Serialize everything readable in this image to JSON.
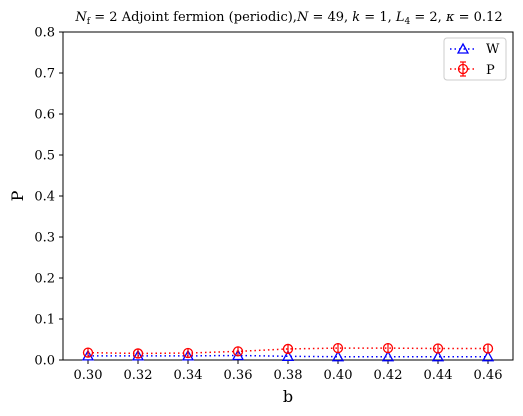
{
  "chart_data": {
    "type": "line",
    "title": "N_f = 2 Adjoint fermion (periodic), N = 49, k = 1, L_4 = 2, κ = 0.12",
    "title_parts": {
      "nf": "N",
      "nf_sub": "f",
      "nf_val": " = 2 ",
      "main": "Adjoint fermion (periodic),",
      "n": "N",
      "n_val": " = 49, ",
      "k": "k",
      "k_val": " = 1, ",
      "l4": "L",
      "l4_sub": "4",
      "l4_val": " = 2, ",
      "kappa": "κ",
      "kappa_val": " = 0.12"
    },
    "xlabel": "b",
    "ylabel": "P",
    "xlim": [
      0.29,
      0.47
    ],
    "ylim": [
      0.0,
      0.8
    ],
    "xticks": [
      0.3,
      0.32,
      0.34,
      0.36,
      0.38,
      0.4,
      0.42,
      0.44,
      0.46
    ],
    "yticks": [
      0.0,
      0.1,
      0.2,
      0.3,
      0.4,
      0.5,
      0.6,
      0.7,
      0.8
    ],
    "x": [
      0.3,
      0.32,
      0.34,
      0.36,
      0.38,
      0.4,
      0.42,
      0.44,
      0.46
    ],
    "series": [
      {
        "name": "W",
        "color": "#0000ff",
        "marker": "triangle",
        "linestyle": "dotted",
        "values": [
          0.01,
          0.01,
          0.01,
          0.011,
          0.009,
          0.008,
          0.008,
          0.008,
          0.008
        ]
      },
      {
        "name": "P",
        "color": "#ff0000",
        "marker": "circle",
        "linestyle": "dotted",
        "errorbars": true,
        "values": [
          0.018,
          0.016,
          0.017,
          0.021,
          0.027,
          0.029,
          0.029,
          0.028,
          0.028
        ]
      }
    ],
    "legend_position": "top-right",
    "grid": false
  }
}
